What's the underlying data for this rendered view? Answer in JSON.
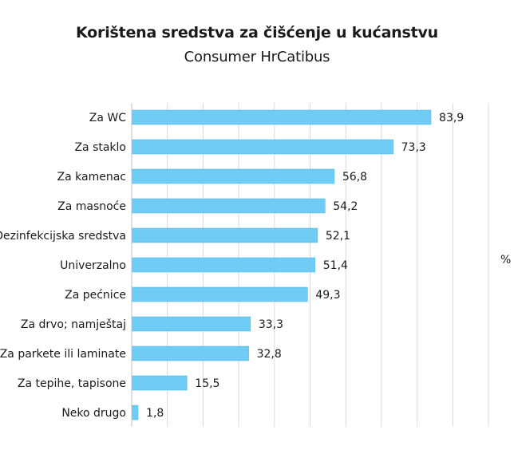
{
  "chart_data": {
    "type": "bar",
    "orientation": "horizontal",
    "title": "Korištena sredstva za čišćenje u kućanstvu",
    "subtitle": "Consumer HrCatibus",
    "ylabel": "%",
    "categories": [
      "Za WC",
      "Za staklo",
      "Za kamenac",
      "Za masnoće",
      "Dezinfekcijska sredstva",
      "Univerzalno",
      "Za pećnice",
      "Za drvo; namještaj",
      "Za parkete ili laminate",
      "Za tepihe, tapisone",
      "Neko drugo"
    ],
    "values": [
      83.9,
      73.3,
      56.8,
      54.2,
      52.1,
      51.4,
      49.3,
      33.3,
      32.8,
      15.5,
      1.8
    ],
    "value_labels": [
      "83,9",
      "73,3",
      "56,8",
      "54,2",
      "52,1",
      "51,4",
      "49,3",
      "33,3",
      "32,8",
      "15,5",
      "1,8"
    ],
    "xlim": [
      0,
      100
    ],
    "grid": true,
    "bar_color": "#6fcdf5",
    "bar_border_color": "#4fb3e0",
    "grid_color": "#d9d9d9"
  }
}
